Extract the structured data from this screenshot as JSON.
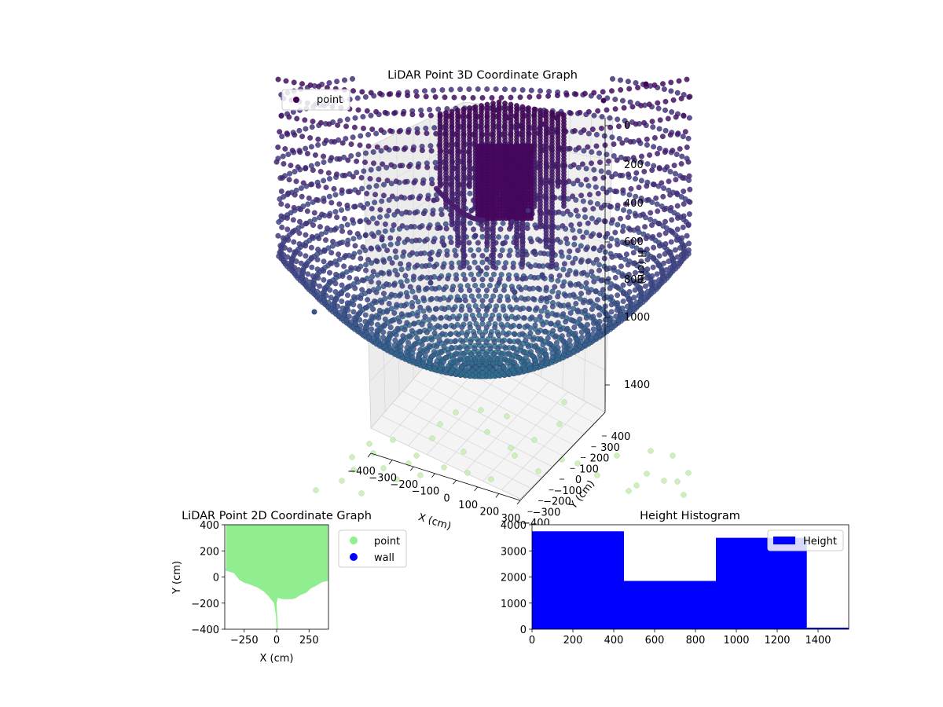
{
  "colors": {
    "point_3d_legend": "#440154",
    "point_2d": "#90ee90",
    "wall": "#0000ff",
    "histogram_bar": "#0000ff",
    "floor_points": "#c8ecb4"
  },
  "chart_data": [
    {
      "id": "lidar-3d",
      "type": "scatter",
      "title": "LiDAR Point 3D Coordinate Graph",
      "xlabel": "X (cm)",
      "ylabel": "Y (cm)",
      "zlabel": "H (cm)",
      "x_ticks": [
        "−400",
        "−300",
        "−200",
        "−100",
        "0",
        "100",
        "200",
        "300"
      ],
      "y_ticks": [
        "400",
        "300",
        "200",
        "100",
        "0",
        "−100",
        "−200",
        "−300",
        "−400"
      ],
      "z_ticks": [
        "0",
        "200",
        "400",
        "600",
        "800",
        "1000",
        "1400"
      ],
      "legend": [
        "point"
      ],
      "legend_position": "upper-left",
      "colormap": "viridis",
      "z_inverted": true
    },
    {
      "id": "lidar-2d",
      "type": "scatter",
      "title": "LiDAR Point 2D Coordinate Graph",
      "xlabel": "X (cm)",
      "ylabel": "Y (cm)",
      "xlim": [
        -400,
        400
      ],
      "ylim": [
        -400,
        400
      ],
      "x_ticks": [
        -250,
        0,
        250
      ],
      "y_ticks": [
        400,
        200,
        0,
        -200,
        -400
      ],
      "x_tick_labels": [
        "−250",
        "0",
        "250"
      ],
      "y_tick_labels": [
        "400",
        "200",
        "0",
        "−200",
        "−400"
      ],
      "series": [
        {
          "name": "point"
        },
        {
          "name": "wall"
        }
      ],
      "legend_position": "outside-right",
      "point_region": {
        "boundary_points": [
          [
            -390,
            400
          ],
          [
            -390,
            70
          ],
          [
            -395,
            50
          ],
          [
            -330,
            30
          ],
          [
            -290,
            -20
          ],
          [
            -260,
            -40
          ],
          [
            -200,
            -60
          ],
          [
            -150,
            -80
          ],
          [
            -100,
            -110
          ],
          [
            -60,
            -150
          ],
          [
            -20,
            -200
          ],
          [
            -5,
            -300
          ],
          [
            0,
            -400
          ],
          [
            10,
            -400
          ],
          [
            0,
            -200
          ],
          [
            10,
            -160
          ],
          [
            50,
            -170
          ],
          [
            120,
            -170
          ],
          [
            150,
            -160
          ],
          [
            180,
            -140
          ],
          [
            230,
            -120
          ],
          [
            260,
            -90
          ],
          [
            300,
            -70
          ],
          [
            350,
            -40
          ],
          [
            395,
            -30
          ],
          [
            395,
            400
          ]
        ]
      }
    },
    {
      "id": "height-histogram",
      "type": "bar",
      "title": "Height Histogram",
      "xlim": [
        0,
        1550
      ],
      "ylim": [
        0,
        4000
      ],
      "x_ticks": [
        0,
        200,
        400,
        600,
        800,
        1000,
        1200,
        1400
      ],
      "y_ticks": [
        0,
        1000,
        2000,
        3000,
        4000
      ],
      "bins": [
        {
          "start": 0,
          "end": 450,
          "value": 3750
        },
        {
          "start": 450,
          "end": 900,
          "value": 1850
        },
        {
          "start": 900,
          "end": 1345,
          "value": 3500
        },
        {
          "start": 1345,
          "end": 1560,
          "value": 60
        }
      ],
      "legend": [
        "Height"
      ],
      "legend_position": "upper-right"
    }
  ]
}
